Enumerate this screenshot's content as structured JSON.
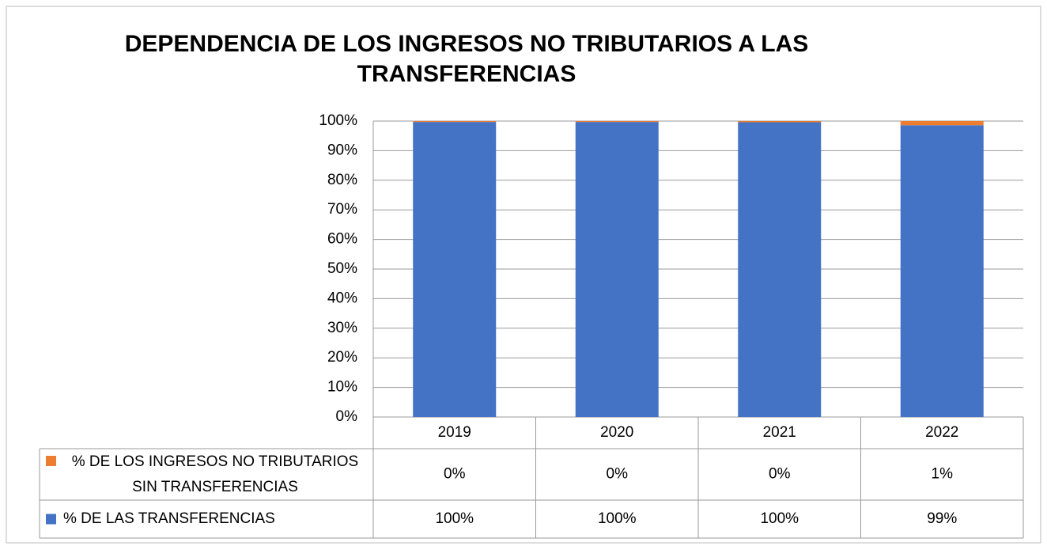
{
  "chart_data": {
    "type": "stacked_bar",
    "title": [
      "DEPENDENCIA DE LOS INGRESOS NO TRIBUTARIOS A LAS",
      "TRANSFERENCIAS"
    ],
    "categories": [
      "2019",
      "2020",
      "2021",
      "2022"
    ],
    "series": [
      {
        "name": "% DE LOS INGRESOS NO TRIBUTARIOS SIN TRANSFERENCIAS",
        "color": "#ed7d31",
        "values": [
          0.3,
          0.3,
          0.4,
          1.4
        ],
        "value_labels": [
          "0%",
          "0%",
          "0%",
          "1%"
        ]
      },
      {
        "name": "% DE LAS TRANSFERENCIAS",
        "color": "#4472c4",
        "values": [
          99.7,
          99.7,
          99.6,
          98.6
        ],
        "value_labels": [
          "100%",
          "100%",
          "100%",
          "99%"
        ]
      }
    ],
    "ylim": [
      0,
      100
    ],
    "yticks": [
      {
        "value": 0,
        "label": "0%"
      },
      {
        "value": 10,
        "label": "10%"
      },
      {
        "value": 20,
        "label": "20%"
      },
      {
        "value": 30,
        "label": "30%"
      },
      {
        "value": 40,
        "label": "40%"
      },
      {
        "value": 50,
        "label": "50%"
      },
      {
        "value": 60,
        "label": "60%"
      },
      {
        "value": 70,
        "label": "70%"
      },
      {
        "value": 80,
        "label": "80%"
      },
      {
        "value": 90,
        "label": "90%"
      },
      {
        "value": 100,
        "label": "100%"
      }
    ],
    "grid": true
  }
}
